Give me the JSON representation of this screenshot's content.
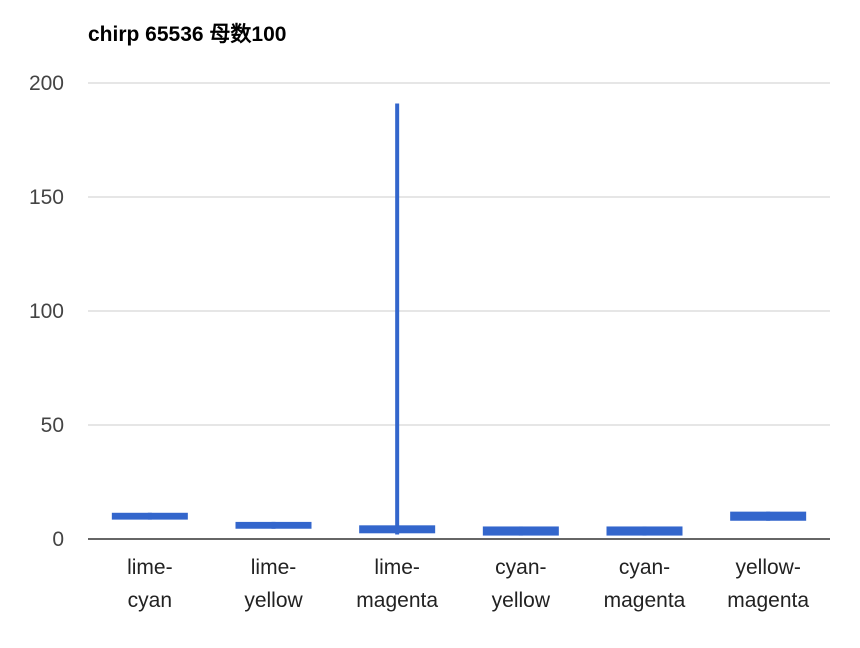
{
  "chart_data": {
    "type": "candlestick",
    "title": "chirp 65536 母数100",
    "xlabel": "",
    "ylabel": "",
    "ylim": [
      0,
      200
    ],
    "y_ticks": [
      0,
      50,
      100,
      150,
      200
    ],
    "grid": true,
    "categories": [
      [
        "lime-",
        "cyan"
      ],
      [
        "lime-",
        "yellow"
      ],
      [
        "lime-",
        "magenta"
      ],
      [
        "cyan-",
        "yellow"
      ],
      [
        "cyan-",
        "magenta"
      ],
      [
        "yellow-",
        "magenta"
      ]
    ],
    "series": [
      {
        "color": "#3366cc",
        "points": [
          {
            "low": 8.5,
            "open": 8.5,
            "close": 11.5,
            "high": 11.5
          },
          {
            "low": 4.5,
            "open": 4.5,
            "close": 7.5,
            "high": 7.5
          },
          {
            "low": 2,
            "open": 2.5,
            "close": 6,
            "high": 191
          },
          {
            "low": 1.5,
            "open": 1.5,
            "close": 5.5,
            "high": 5.5
          },
          {
            "low": 1.5,
            "open": 1.5,
            "close": 5.5,
            "high": 5.5
          },
          {
            "low": 8,
            "open": 8,
            "close": 12,
            "high": 12
          }
        ]
      }
    ]
  }
}
